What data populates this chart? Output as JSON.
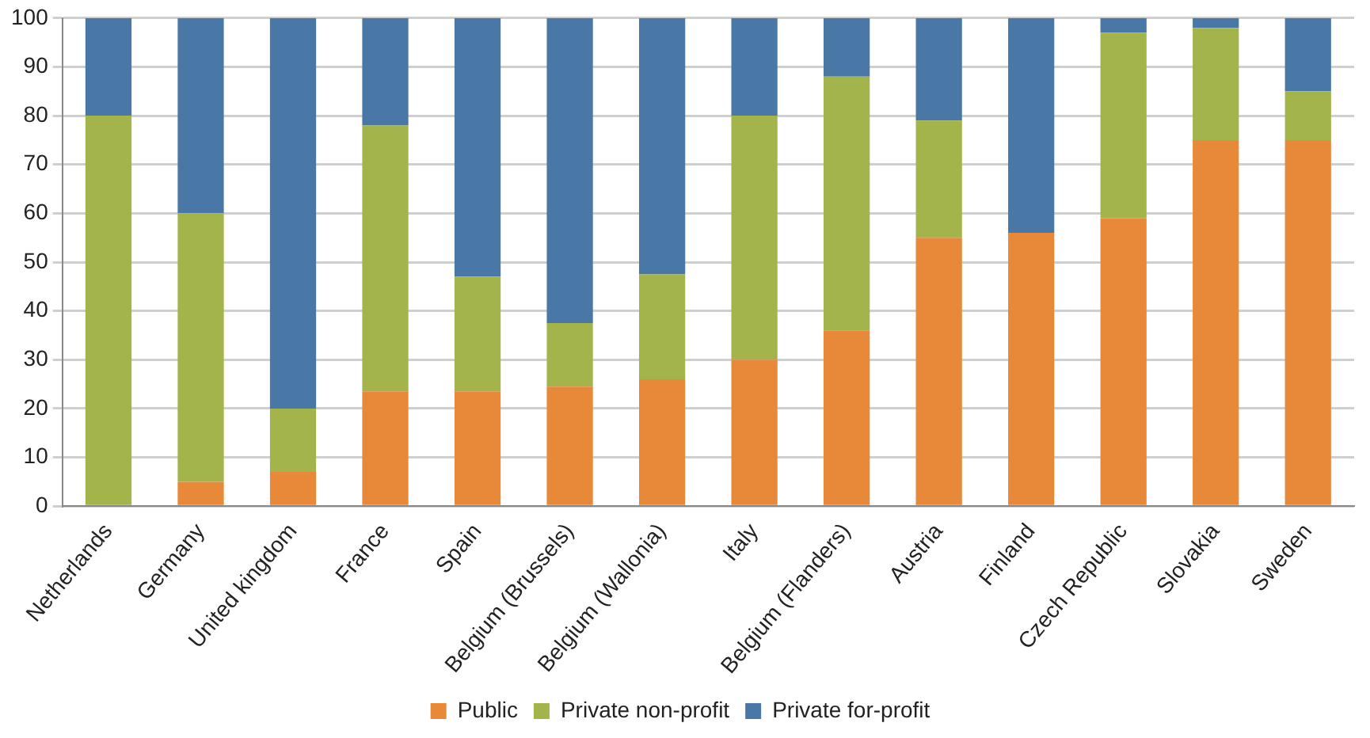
{
  "chart_data": {
    "type": "bar",
    "stacked": true,
    "categories": [
      "Netherlands",
      "Germany",
      "United kingdom",
      "France",
      "Spain",
      "Belgium (Brussels)",
      "Belgium (Wallonia)",
      "Italy",
      "Belgium (Flanders)",
      "Austria",
      "Finland",
      "Czech Republic",
      "Slovakia",
      "Sweden"
    ],
    "series": [
      {
        "name": "Public",
        "color": "#e8893a",
        "values": [
          0,
          5,
          7,
          23.5,
          23.5,
          24.5,
          26,
          30,
          36,
          55,
          56,
          59,
          75,
          75
        ]
      },
      {
        "name": "Private non-profit",
        "color": "#a3b44b",
        "values": [
          80,
          55,
          13,
          54.5,
          23.5,
          13,
          21.5,
          50,
          52,
          24,
          0,
          38,
          23,
          10
        ]
      },
      {
        "name": "Private for-profit",
        "color": "#4a78a6",
        "values": [
          20,
          40,
          80,
          22,
          53,
          62.5,
          52.5,
          20,
          12,
          21,
          44,
          3,
          2,
          15
        ]
      }
    ],
    "ylim": [
      0,
      100
    ],
    "yticks": [
      0,
      10,
      20,
      30,
      40,
      50,
      60,
      70,
      80,
      90,
      100
    ],
    "grid": "y",
    "legend": "bottom"
  }
}
